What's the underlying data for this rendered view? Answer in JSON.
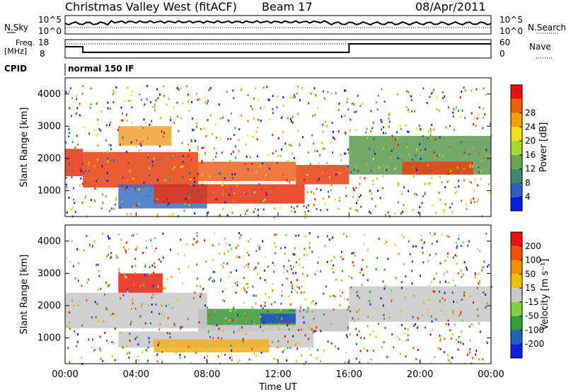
{
  "header": {
    "title": "Christmas Valley West (fitACF)",
    "beam": "Beam 17",
    "date": "08/Apr/2011"
  },
  "top_panel": {
    "left_label": "N.Sky",
    "right_label": "N.Search",
    "left_ticks": [
      "10^5",
      "10^0"
    ],
    "right_ticks": [
      "10^5",
      "10^0"
    ]
  },
  "freq_panel": {
    "left_label_line1": "Freq.",
    "left_label_line2": "[MHz]",
    "right_label": "Nave",
    "left_ticks": [
      "18",
      "8"
    ],
    "right_ticks": [
      "60",
      "0"
    ],
    "cpid_label": "CPID",
    "cpid_value": "normal 150 IF"
  },
  "x_axis": {
    "label": "Time UT",
    "ticks": [
      "00:00",
      "04:00",
      "08:00",
      "12:00",
      "16:00",
      "20:00",
      "00:00"
    ]
  },
  "chart_data": [
    {
      "type": "heatmap",
      "name": "power",
      "ylabel": "Slant Range [km]",
      "yticks": [
        1000,
        2000,
        3000,
        4000
      ],
      "ylim": [
        200,
        4500
      ],
      "xlim": [
        0,
        24
      ],
      "colorbar": {
        "label": "Power [dB]",
        "ticks": [
          "4",
          "8",
          "12",
          "16",
          "20",
          "24",
          "28"
        ],
        "colors": [
          "#0a1fe0",
          "#2b5fc0",
          "#3f8a6a",
          "#6aa84f",
          "#a8d830",
          "#f0e020",
          "#f5a000",
          "#f06000",
          "#e81010"
        ]
      },
      "bands": [
        {
          "t0": 0.0,
          "t1": 1.0,
          "r0": 1450,
          "r1": 2300,
          "c": "#e83010"
        },
        {
          "t0": 1.0,
          "t1": 7.5,
          "r0": 1100,
          "r1": 2200,
          "c": "#e84010"
        },
        {
          "t0": 3.0,
          "t1": 8.0,
          "r0": 450,
          "r1": 1200,
          "c": "#3a70c0"
        },
        {
          "t0": 5.0,
          "t1": 13.5,
          "r0": 600,
          "r1": 1200,
          "c": "#e83010"
        },
        {
          "t0": 7.0,
          "t1": 13.0,
          "r0": 1300,
          "r1": 1900,
          "c": "#f06020"
        },
        {
          "t0": 13.0,
          "t1": 16.0,
          "r0": 1200,
          "r1": 1800,
          "c": "#e84010"
        },
        {
          "t0": 16.0,
          "t1": 24.0,
          "r0": 1500,
          "r1": 2700,
          "c": "#5a9a50"
        },
        {
          "t0": 19.0,
          "t1": 23.0,
          "r0": 1500,
          "r1": 1900,
          "c": "#e84010"
        },
        {
          "t0": 3.0,
          "t1": 6.0,
          "r0": 2400,
          "r1": 3000,
          "c": "#f0a030"
        }
      ]
    },
    {
      "type": "heatmap",
      "name": "velocity",
      "ylabel": "Slant Range [km]",
      "yticks": [
        1000,
        2000,
        3000,
        4000
      ],
      "ylim": [
        200,
        4500
      ],
      "xlim": [
        0,
        24
      ],
      "colorbar": {
        "label": "Velocity [m s⁻¹]",
        "ticks": [
          "200",
          "100",
          "50",
          "15",
          "-15",
          "-50",
          "-100",
          "-200"
        ],
        "colors": [
          "#1020e0",
          "#2060c0",
          "#30a030",
          "#80d040",
          "#c8c8c8",
          "#f0c000",
          "#f09000",
          "#f05000",
          "#e81010"
        ]
      },
      "bands": [
        {
          "t0": 0.0,
          "t1": 8.0,
          "r0": 1300,
          "r1": 2400,
          "c": "#c8c8c8"
        },
        {
          "t0": 3.0,
          "t1": 14.0,
          "r0": 700,
          "r1": 1200,
          "c": "#c8c8c8"
        },
        {
          "t0": 7.5,
          "t1": 16.0,
          "r0": 1200,
          "r1": 1900,
          "c": "#c0c0c0"
        },
        {
          "t0": 8.0,
          "t1": 13.0,
          "r0": 1400,
          "r1": 1900,
          "c": "#40a040"
        },
        {
          "t0": 11.0,
          "t1": 13.0,
          "r0": 1450,
          "r1": 1750,
          "c": "#2050c0"
        },
        {
          "t0": 16.0,
          "t1": 24.0,
          "r0": 1500,
          "r1": 2600,
          "c": "#c8c8c8"
        },
        {
          "t0": 3.0,
          "t1": 5.5,
          "r0": 2400,
          "r1": 3000,
          "c": "#e82010"
        },
        {
          "t0": 5.0,
          "t1": 11.5,
          "r0": 550,
          "r1": 950,
          "c": "#f0b020"
        }
      ]
    }
  ]
}
